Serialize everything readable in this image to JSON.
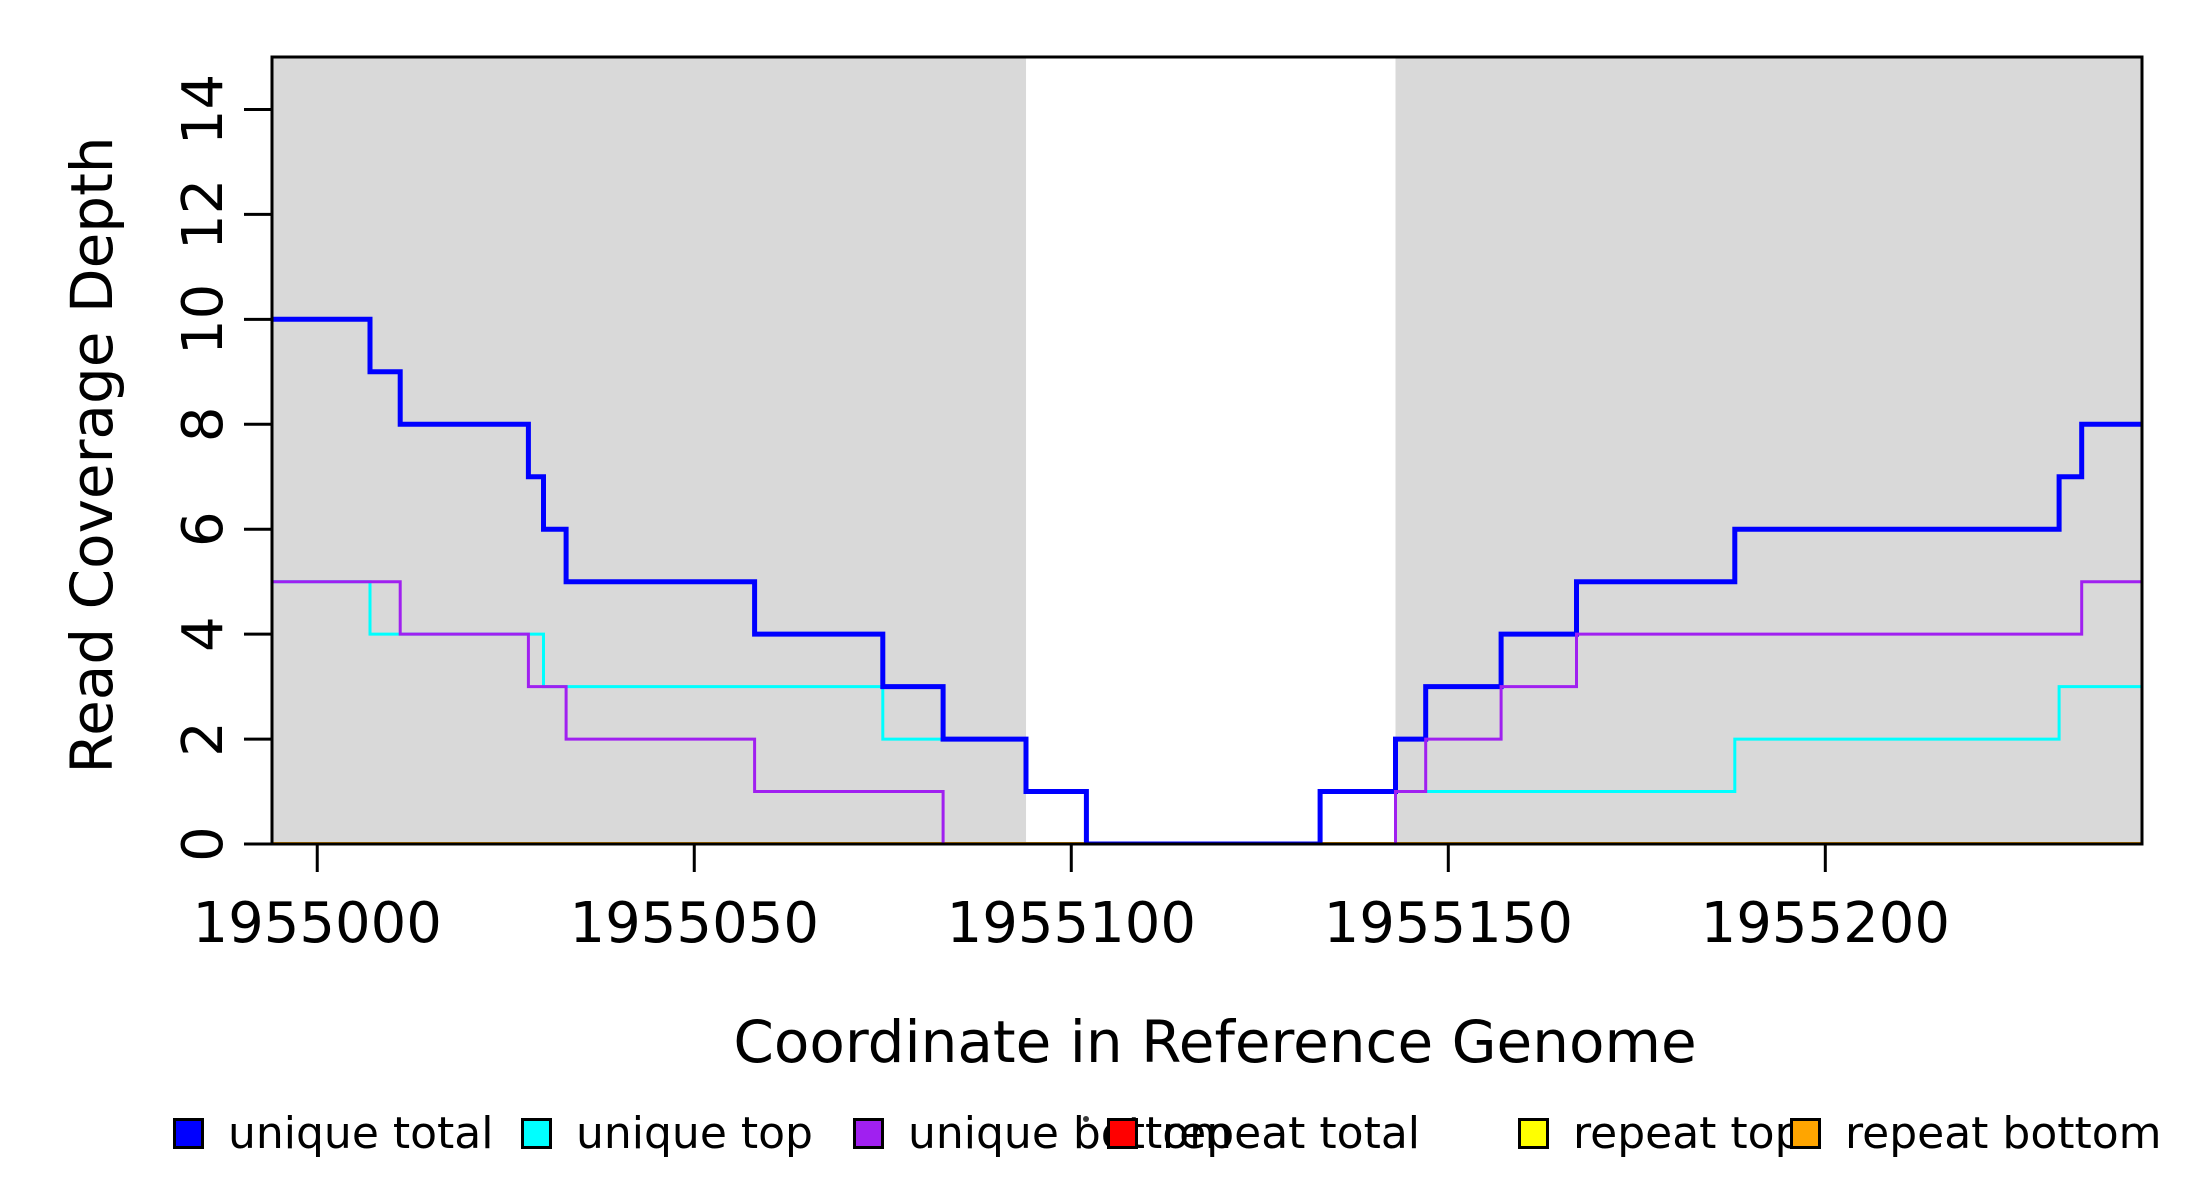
{
  "chart_data": {
    "type": "line",
    "subtype": "step-post",
    "title": "",
    "xlabel": "Coordinate in Reference Genome",
    "ylabel": "Read Coverage Depth",
    "xlim": [
      1954994,
      1955242
    ],
    "ylim": [
      0,
      15
    ],
    "grid": false,
    "x_ticks": [
      {
        "value": 1955000,
        "label": "1955000"
      },
      {
        "value": 1955050,
        "label": "1955050"
      },
      {
        "value": 1955100,
        "label": "1955100"
      },
      {
        "value": 1955150,
        "label": "1955150"
      },
      {
        "value": 1955200,
        "label": "1955200"
      }
    ],
    "y_ticks": [
      {
        "value": 0,
        "label": "0"
      },
      {
        "value": 2,
        "label": "2"
      },
      {
        "value": 4,
        "label": "4"
      },
      {
        "value": 6,
        "label": "6"
      },
      {
        "value": 8,
        "label": "8"
      },
      {
        "value": 10,
        "label": "10"
      },
      {
        "value": 12,
        "label": "12"
      },
      {
        "value": 14,
        "label": "14"
      }
    ],
    "shade_color": "#D9D9D9",
    "shaded_regions": [
      {
        "from": 1954994,
        "to": 1955094
      },
      {
        "from": 1955143,
        "to": 1955242
      }
    ],
    "series_draw_order_note": "drawn first to last; later series overlap earlier ones",
    "series": [
      {
        "name": "repeat top",
        "color": "#FFFF00",
        "width": 3,
        "end": 1955242,
        "steps": [
          [
            1954994,
            0
          ]
        ]
      },
      {
        "name": "repeat total",
        "color": "#FF0000",
        "width": 3,
        "end": 1955242,
        "steps": [
          [
            1954994,
            0
          ]
        ]
      },
      {
        "name": "repeat bottom",
        "color": "#FFA500",
        "width": 4,
        "end": 1955242,
        "steps": [
          [
            1954994,
            0
          ]
        ]
      },
      {
        "name": "unique top",
        "color": "#00FFFF",
        "width": 3,
        "end": 1955242,
        "steps": [
          [
            1954994,
            5
          ],
          [
            1955007,
            4
          ],
          [
            1955030,
            3
          ],
          [
            1955075,
            2
          ],
          [
            1955094,
            1
          ],
          [
            1955102,
            0
          ],
          [
            1955133,
            1
          ],
          [
            1955188,
            2
          ],
          [
            1955231,
            3
          ]
        ]
      },
      {
        "name": "unique total",
        "color": "#0000FF",
        "width": 5,
        "end": 1955242,
        "steps": [
          [
            1954994,
            10
          ],
          [
            1955007,
            9
          ],
          [
            1955011,
            8
          ],
          [
            1955028,
            7
          ],
          [
            1955030,
            6
          ],
          [
            1955033,
            5
          ],
          [
            1955058,
            4
          ],
          [
            1955075,
            3
          ],
          [
            1955083,
            2
          ],
          [
            1955094,
            1
          ],
          [
            1955102,
            0
          ],
          [
            1955133,
            1
          ],
          [
            1955143,
            2
          ],
          [
            1955147,
            3
          ],
          [
            1955157,
            4
          ],
          [
            1955167,
            5
          ],
          [
            1955188,
            6
          ],
          [
            1955231,
            7
          ],
          [
            1955234,
            8
          ]
        ]
      },
      {
        "name": "unique bottom",
        "color": "#A020F0",
        "width": 3,
        "end": 1955242,
        "steps": [
          [
            1954994,
            5
          ],
          [
            1955011,
            4
          ],
          [
            1955028,
            3
          ],
          [
            1955033,
            2
          ],
          [
            1955058,
            1
          ],
          [
            1955083,
            0
          ],
          [
            1955143,
            1
          ],
          [
            1955147,
            2
          ],
          [
            1955157,
            3
          ],
          [
            1955167,
            4
          ],
          [
            1955234,
            5
          ]
        ]
      }
    ],
    "legend": {
      "position": "bottom",
      "items": [
        {
          "label": "unique total",
          "color": "#0000FF"
        },
        {
          "label": "unique top",
          "color": "#00FFFF"
        },
        {
          "label": "unique bottom",
          "color": "#A020F0"
        },
        {
          "label": "repeat total",
          "color": "#FF0000"
        },
        {
          "label": "repeat top",
          "color": "#FFFF00"
        },
        {
          "label": "repeat bottom",
          "color": "#FFA500"
        }
      ]
    }
  },
  "annotations": {
    "stray_dot_present": "small dark dot between 'unique bottom' and 'repeat total' legend entries"
  }
}
